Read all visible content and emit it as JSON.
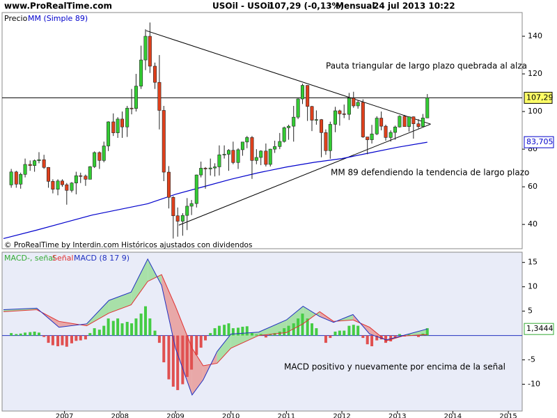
{
  "header": {
    "site": "www.ProRealTime.com",
    "instrument": "USOil - USOil",
    "price": "107,29 (-0,13%)",
    "period": "Mensual",
    "datetime": "24 jul 2013 10:22"
  },
  "chart_data": [
    {
      "type": "candlestick",
      "title": "Precio",
      "source": "© ProRealTime by Interdin.com Históricos ajustados con dividendos",
      "up_color": "#33cc33",
      "down_color": "#e0401c",
      "x": [
        2006.04,
        2006.13,
        2006.21,
        2006.29,
        2006.38,
        2006.46,
        2006.54,
        2006.63,
        2006.71,
        2006.79,
        2006.88,
        2006.96,
        2007.04,
        2007.13,
        2007.21,
        2007.29,
        2007.38,
        2007.46,
        2007.54,
        2007.63,
        2007.71,
        2007.79,
        2007.88,
        2007.96,
        2008.04,
        2008.13,
        2008.21,
        2008.29,
        2008.38,
        2008.46,
        2008.54,
        2008.63,
        2008.71,
        2008.79,
        2008.88,
        2008.96,
        2009.04,
        2009.13,
        2009.21,
        2009.29,
        2009.38,
        2009.46,
        2009.54,
        2009.63,
        2009.71,
        2009.79,
        2009.88,
        2009.96,
        2010.04,
        2010.13,
        2010.21,
        2010.29,
        2010.38,
        2010.46,
        2010.54,
        2010.63,
        2010.71,
        2010.79,
        2010.88,
        2010.96,
        2011.04,
        2011.13,
        2011.21,
        2011.29,
        2011.38,
        2011.46,
        2011.54,
        2011.63,
        2011.71,
        2011.79,
        2011.88,
        2011.96,
        2012.04,
        2012.13,
        2012.21,
        2012.29,
        2012.38,
        2012.46,
        2012.54,
        2012.63,
        2012.71,
        2012.79,
        2012.88,
        2012.96,
        2013.04,
        2013.13,
        2013.21,
        2013.29,
        2013.38,
        2013.46,
        2013.54
      ],
      "open": [
        61.0,
        67.9,
        61.4,
        66.6,
        71.9,
        71.3,
        73.9,
        74.4,
        70.3,
        62.9,
        58.7,
        63.1,
        61.1,
        58.1,
        62.0,
        65.9,
        65.7,
        64.0,
        70.7,
        78.2,
        74.0,
        81.7,
        94.5,
        88.7,
        96.0,
        91.8,
        101.8,
        101.6,
        113.5,
        127.4,
        140.0,
        124.1,
        115.5,
        100.6,
        67.8,
        54.4,
        44.6,
        41.7,
        44.8,
        49.7,
        51.1,
        66.3,
        69.9,
        69.5,
        70.0,
        70.6,
        77.0,
        77.3,
        79.4,
        72.9,
        79.7,
        83.8,
        86.2,
        74.0,
        75.6,
        79.0,
        71.9,
        80.0,
        81.4,
        84.1,
        91.4,
        92.2,
        97.0,
        106.7,
        113.9,
        102.7,
        95.4,
        95.7,
        88.8,
        79.2,
        93.2,
        100.4,
        98.8,
        98.5,
        107.1,
        103.0,
        104.9,
        86.5,
        85.0,
        88.1,
        96.5,
        92.2,
        86.2,
        88.9,
        91.8,
        97.5,
        92.0,
        97.2,
        93.5,
        92.0,
        96.6
      ],
      "high": [
        69.5,
        68.5,
        67.5,
        75.0,
        74.0,
        74.5,
        78.4,
        77.0,
        70.5,
        64.0,
        64.0,
        64.0,
        62.0,
        62.5,
        68.0,
        67.5,
        66.5,
        71.0,
        78.8,
        78.8,
        84.0,
        94.8,
        99.0,
        97.0,
        100.0,
        103.0,
        112.0,
        120.0,
        135.0,
        143.7,
        147.3,
        126.0,
        130.0,
        103.0,
        71.0,
        55.0,
        49.0,
        46.0,
        54.0,
        53.0,
        66.5,
        73.4,
        70.5,
        75.0,
        72.5,
        82.0,
        82.0,
        80.0,
        84.0,
        80.5,
        83.9,
        87.0,
        87.0,
        80.0,
        79.4,
        83.0,
        80.2,
        84.5,
        88.6,
        92.0,
        93.0,
        103.0,
        107.0,
        114.8,
        114.0,
        103.0,
        100.6,
        96.0,
        90.5,
        94.6,
        102.5,
        101.0,
        103.7,
        109.9,
        110.5,
        106.0,
        106.5,
        86.5,
        92.9,
        97.5,
        100.0,
        93.0,
        90.0,
        92.5,
        98.0,
        98.2,
        97.4,
        97.4,
        96.0,
        98.7,
        109.3
      ],
      "low": [
        59.5,
        59.5,
        59.0,
        65.0,
        68.5,
        68.0,
        72.5,
        69.5,
        59.5,
        56.5,
        55.5,
        60.0,
        50.5,
        57.0,
        56.0,
        62.0,
        60.5,
        64.0,
        70.0,
        69.5,
        73.0,
        79.0,
        87.0,
        86.0,
        86.0,
        86.5,
        98.5,
        100.0,
        112.0,
        122.0,
        120.5,
        112.0,
        90.5,
        63.0,
        48.5,
        32.5,
        33.5,
        34.0,
        37.0,
        45.0,
        49.0,
        65.0,
        59.0,
        66.0,
        65.5,
        66.0,
        75.0,
        68.5,
        72.0,
        69.5,
        76.5,
        80.5,
        64.2,
        72.0,
        71.5,
        70.8,
        70.8,
        78.0,
        80.0,
        83.5,
        85.0,
        84.0,
        96.0,
        104.0,
        95.0,
        89.6,
        93.0,
        75.7,
        77.0,
        74.9,
        89.0,
        92.5,
        96.5,
        95.5,
        102.0,
        101.5,
        86.0,
        77.3,
        83.0,
        87.5,
        90.0,
        84.5,
        84.0,
        85.0,
        91.5,
        92.0,
        89.3,
        85.6,
        91.0,
        92.0,
        96.5
      ],
      "close": [
        67.9,
        61.4,
        66.6,
        71.9,
        71.3,
        73.9,
        74.4,
        70.3,
        62.9,
        58.7,
        63.1,
        61.1,
        58.1,
        62.0,
        65.9,
        65.7,
        64.0,
        70.7,
        78.2,
        74.0,
        81.7,
        94.5,
        88.7,
        96.0,
        91.8,
        101.8,
        101.6,
        113.5,
        127.4,
        140.0,
        124.1,
        115.5,
        100.6,
        67.8,
        54.4,
        44.6,
        41.7,
        44.8,
        49.7,
        51.1,
        66.3,
        69.9,
        69.5,
        70.0,
        70.6,
        77.0,
        77.3,
        79.4,
        72.9,
        79.7,
        83.8,
        86.2,
        74.0,
        75.6,
        79.0,
        71.9,
        80.0,
        81.4,
        84.1,
        91.4,
        92.2,
        97.0,
        106.7,
        113.9,
        102.7,
        95.4,
        95.7,
        88.8,
        79.2,
        93.2,
        100.4,
        98.8,
        98.5,
        107.1,
        103.0,
        104.9,
        86.5,
        85.0,
        88.1,
        96.5,
        92.2,
        86.2,
        88.9,
        91.8,
        97.5,
        92.0,
        97.2,
        93.5,
        92.0,
        96.6,
        107.3
      ],
      "ma": {
        "name": "MM (Simple 89)",
        "color": "#0000cc",
        "x": [
          2005.9,
          2006.5,
          2007.0,
          2007.5,
          2008.0,
          2008.5,
          2008.75,
          2009.0,
          2009.5,
          2010.0,
          2010.5,
          2011.0,
          2011.5,
          2012.0,
          2012.5,
          2013.0,
          2013.54
        ],
        "values": [
          32.5,
          37,
          41,
          45,
          48,
          51,
          53.5,
          56,
          60,
          64,
          67.5,
          70.5,
          73,
          75,
          78,
          81,
          83.705
        ],
        "value_label": "83,705"
      },
      "last": {
        "value": 107.29,
        "label": "107,29"
      },
      "trendlines": [
        {
          "x": [
            2008.47,
            2013.6
          ],
          "values": [
            143,
            93.3
          ]
        },
        {
          "x": [
            2009.06,
            2013.6
          ],
          "values": [
            39.6,
            93.3
          ]
        }
      ],
      "annotations": [
        "Pauta triangular de largo plazo quebrada al alza",
        "MM 89 defendiendo la tendencia de largo plazo"
      ],
      "xlim": [
        2005.875,
        2015.25
      ],
      "ylim": [
        27.1,
        152.6
      ],
      "yticks": [
        40,
        60,
        80,
        100,
        120,
        140
      ]
    },
    {
      "type": "macd",
      "line_x": [
        2005.9,
        2006.5,
        2006.9,
        2007.4,
        2007.8,
        2008.2,
        2008.5,
        2008.75,
        2009.0,
        2009.3,
        2009.5,
        2009.75,
        2010.0,
        2010.5,
        2011.0,
        2011.3,
        2011.6,
        2011.85,
        2012.2,
        2012.5,
        2012.8,
        2013.1,
        2013.54
      ],
      "series": [
        {
          "name": "MACD-, señal",
          "color": "#44cc44",
          "negative_color": "#e05050",
          "values": [
            0.5,
            0.3,
            0.4,
            0.6,
            0.7,
            0.8,
            0.6,
            -0.3,
            -1.5,
            -2.0,
            -2.2,
            -2.0,
            -2.3,
            -1.6,
            -1.1,
            -1.0,
            -0.8,
            0.5,
            1.5,
            1.2,
            2.0,
            3.5,
            3.0,
            3.5,
            2.5,
            2.8,
            2.5,
            3.5,
            4.5,
            6.0,
            3.5,
            1.0,
            -1.5,
            -5.5,
            -9.0,
            -10.5,
            -11.2,
            -10.0,
            -8.5,
            -7.0,
            -4.0,
            -2.5,
            -1.0,
            0.5,
            1.5,
            2.0,
            2.2,
            2.5,
            1.5,
            1.6,
            1.8,
            1.9,
            0.5,
            0.2,
            0.3,
            -0.4,
            0.3,
            0.5,
            0.8,
            1.5,
            2.0,
            2.5,
            3.5,
            4.5,
            3.5,
            2.5,
            1.5,
            0.0,
            -1.5,
            -0.5,
            0.8,
            1.0,
            1.0,
            2.0,
            2.2,
            2.0,
            -0.5,
            -1.8,
            -2.2,
            -1.0,
            -0.8,
            -1.5,
            -1.2,
            -0.5,
            0.3,
            -0.2,
            0.2,
            0.0,
            -0.3,
            0.4,
            1.5
          ]
        },
        {
          "name": "Señal",
          "color": "#e03030",
          "values": [
            4.9,
            5.3,
            2.9,
            2.0,
            4.6,
            6.3,
            11.1,
            12.5,
            6.0,
            -2.6,
            -6.2,
            -5.7,
            -2.6,
            0,
            0.6,
            2.4,
            4.9,
            2.9,
            3.2,
            1.7,
            -1.1,
            -0.1,
            0.2
          ]
        },
        {
          "name": "MACD (8 17 9)",
          "color": "#2030c0",
          "values": [
            5.3,
            5.6,
            1.7,
            2.4,
            7.2,
            8.9,
            15.7,
            10.3,
            -2.6,
            -12.2,
            -9.1,
            -3.3,
            0.3,
            0.7,
            3.2,
            6.0,
            3.9,
            2.7,
            4.3,
            0.3,
            -0.9,
            0,
            1.3444
          ],
          "value_label": "1,3444"
        }
      ],
      "annotations": [
        "MACD positivo y nuevamente por encima de la señal"
      ],
      "xlim": [
        2005.875,
        2015.25
      ],
      "ylim": [
        -15.5,
        17.1
      ],
      "yticks": [
        -10,
        -5,
        5,
        10,
        15
      ],
      "xticks": [
        2007,
        2008,
        2009,
        2010,
        2011,
        2012,
        2013,
        2014,
        2015
      ]
    }
  ]
}
